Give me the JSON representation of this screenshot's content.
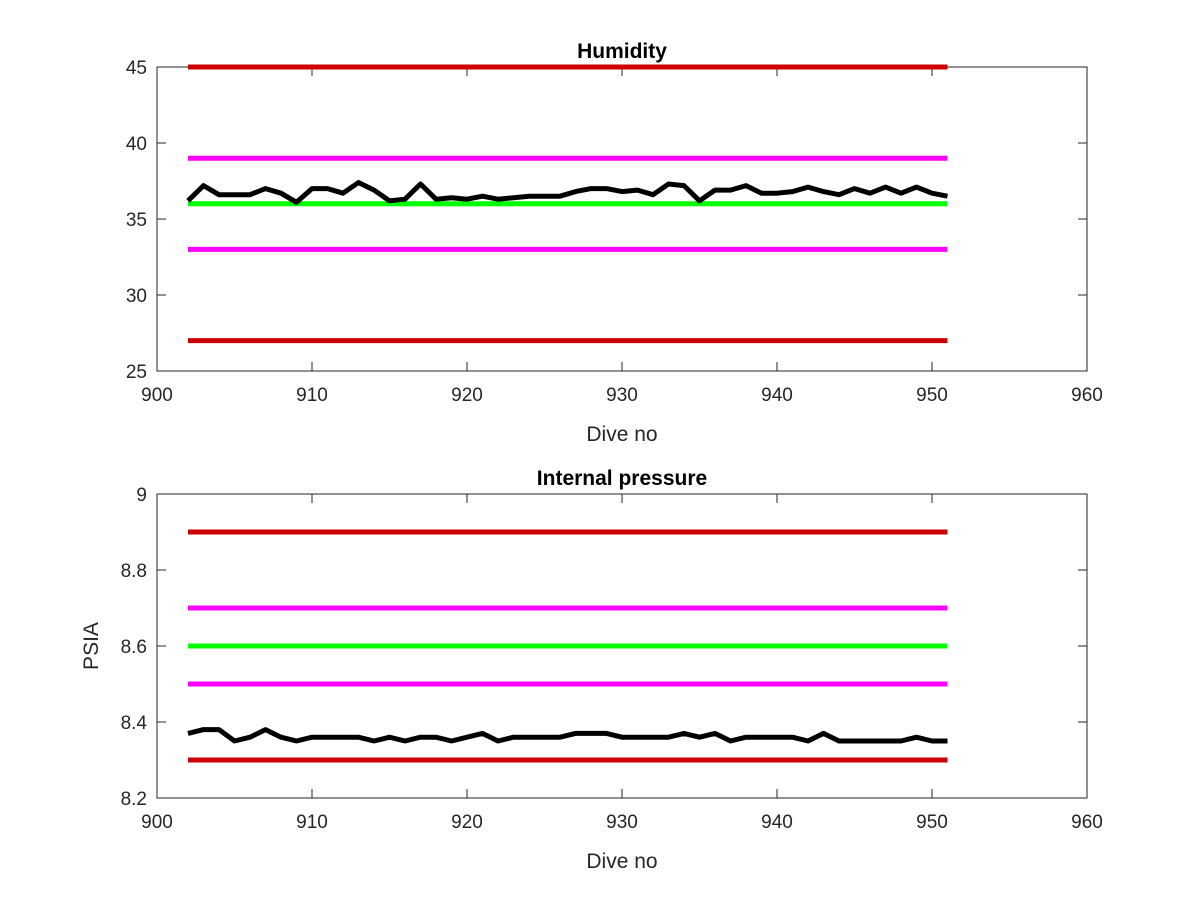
{
  "chart_data": [
    {
      "type": "line",
      "title": "Humidity",
      "xlabel": "Dive no",
      "ylabel": "",
      "xlim": [
        900,
        960
      ],
      "ylim": [
        25,
        45
      ],
      "xticks": [
        900,
        910,
        920,
        930,
        940,
        950,
        960
      ],
      "yticks": [
        25,
        30,
        35,
        40,
        45
      ],
      "xtick_labels": [
        "900",
        "910",
        "920",
        "930",
        "940",
        "950",
        "960"
      ],
      "ytick_labels": [
        "25",
        "30",
        "35",
        "40",
        "45"
      ],
      "grid": false,
      "reference_lines": [
        {
          "y": 45,
          "color": "#cc0000",
          "x_range": [
            902,
            951
          ]
        },
        {
          "y": 39,
          "color": "#ff00ff",
          "x_range": [
            902,
            951
          ]
        },
        {
          "y": 36,
          "color": "#00ff00",
          "x_range": [
            902,
            951
          ]
        },
        {
          "y": 33,
          "color": "#ff00ff",
          "x_range": [
            902,
            951
          ]
        },
        {
          "y": 27,
          "color": "#cc0000",
          "x_range": [
            902,
            951
          ]
        }
      ],
      "series": [
        {
          "color": "#000000",
          "x": [
            902,
            903,
            904,
            905,
            906,
            907,
            908,
            909,
            910,
            911,
            912,
            913,
            914,
            915,
            916,
            917,
            918,
            919,
            920,
            921,
            922,
            923,
            924,
            925,
            926,
            927,
            928,
            929,
            930,
            931,
            932,
            933,
            934,
            935,
            936,
            937,
            938,
            939,
            940,
            941,
            942,
            943,
            944,
            945,
            946,
            947,
            948,
            949,
            950,
            951
          ],
          "y": [
            36.2,
            37.2,
            36.6,
            36.6,
            36.6,
            37.0,
            36.7,
            36.1,
            37.0,
            37.0,
            36.7,
            37.4,
            36.9,
            36.2,
            36.3,
            37.3,
            36.3,
            36.4,
            36.3,
            36.5,
            36.3,
            36.4,
            36.5,
            36.5,
            36.5,
            36.8,
            37.0,
            37.0,
            36.8,
            36.9,
            36.6,
            37.3,
            37.2,
            36.2,
            36.9,
            36.9,
            37.2,
            36.7,
            36.7,
            36.8,
            37.1,
            36.8,
            36.6,
            37.0,
            36.7,
            37.1,
            36.7,
            37.1,
            36.7,
            36.5
          ]
        }
      ]
    },
    {
      "type": "line",
      "title": "Internal pressure",
      "xlabel": "Dive no",
      "ylabel": "PSIA",
      "xlim": [
        900,
        960
      ],
      "ylim": [
        8.2,
        9.0
      ],
      "xticks": [
        900,
        910,
        920,
        930,
        940,
        950,
        960
      ],
      "yticks": [
        8.2,
        8.4,
        8.6,
        8.8,
        9.0
      ],
      "xtick_labels": [
        "900",
        "910",
        "920",
        "930",
        "940",
        "950",
        "960"
      ],
      "ytick_labels": [
        "8.2",
        "8.4",
        "8.6",
        "8.8",
        "9"
      ],
      "grid": false,
      "reference_lines": [
        {
          "y": 8.9,
          "color": "#cc0000",
          "x_range": [
            902,
            951
          ]
        },
        {
          "y": 8.7,
          "color": "#ff00ff",
          "x_range": [
            902,
            951
          ]
        },
        {
          "y": 8.6,
          "color": "#00ff00",
          "x_range": [
            902,
            951
          ]
        },
        {
          "y": 8.5,
          "color": "#ff00ff",
          "x_range": [
            902,
            951
          ]
        },
        {
          "y": 8.3,
          "color": "#cc0000",
          "x_range": [
            902,
            951
          ]
        }
      ],
      "series": [
        {
          "color": "#000000",
          "x": [
            902,
            903,
            904,
            905,
            906,
            907,
            908,
            909,
            910,
            911,
            912,
            913,
            914,
            915,
            916,
            917,
            918,
            919,
            920,
            921,
            922,
            923,
            924,
            925,
            926,
            927,
            928,
            929,
            930,
            931,
            932,
            933,
            934,
            935,
            936,
            937,
            938,
            939,
            940,
            941,
            942,
            943,
            944,
            945,
            946,
            947,
            948,
            949,
            950,
            951
          ],
          "y": [
            8.37,
            8.38,
            8.38,
            8.35,
            8.36,
            8.38,
            8.36,
            8.35,
            8.36,
            8.36,
            8.36,
            8.36,
            8.35,
            8.36,
            8.35,
            8.36,
            8.36,
            8.35,
            8.36,
            8.37,
            8.35,
            8.36,
            8.36,
            8.36,
            8.36,
            8.37,
            8.37,
            8.37,
            8.36,
            8.36,
            8.36,
            8.36,
            8.37,
            8.36,
            8.37,
            8.35,
            8.36,
            8.36,
            8.36,
            8.36,
            8.35,
            8.37,
            8.35,
            8.35,
            8.35,
            8.35,
            8.35,
            8.36,
            8.35,
            8.35
          ]
        }
      ]
    }
  ]
}
